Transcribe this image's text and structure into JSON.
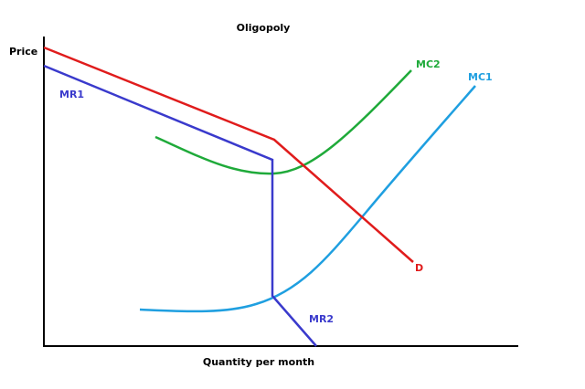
{
  "title": "Oligopoly",
  "axes": {
    "y_label": "Price",
    "x_label": "Quantity per month"
  },
  "curves": [
    {
      "label": "D"
    },
    {
      "label": "MR1"
    },
    {
      "label": "MR2"
    },
    {
      "label": "MC1"
    },
    {
      "label": "MC2"
    }
  ]
}
